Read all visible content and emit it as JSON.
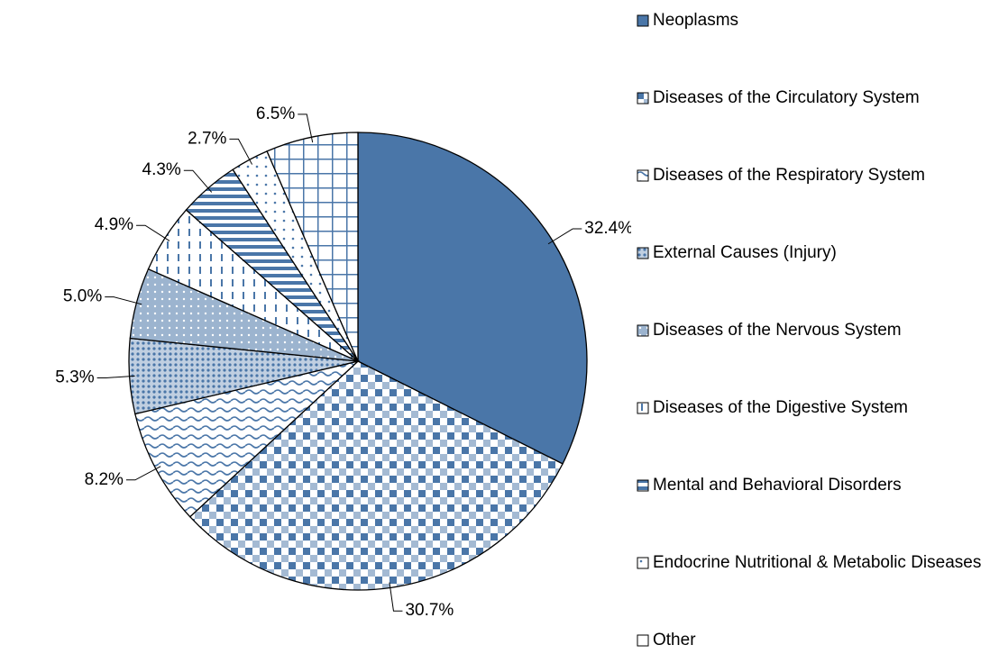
{
  "chart_data": {
    "type": "pie",
    "categories": [
      "Neoplasms",
      "Diseases of the Circulatory System",
      "Diseases of the Respiratory System",
      "External Causes (Injury)",
      "Diseases of the Nervous System",
      "Diseases of the Digestive System",
      "Mental and Behavioral Disorders",
      "Endocrine Nutritional & Metabolic Diseases",
      "Other"
    ],
    "values": [
      32.4,
      30.7,
      8.2,
      5.3,
      5.0,
      4.9,
      4.3,
      2.7,
      6.5
    ],
    "value_labels": [
      "32.4%",
      "30.7%",
      "8.2%",
      "5.3%",
      "5.0%",
      "4.9%",
      "4.3%",
      "2.7%",
      "6.5%"
    ],
    "color": "#4a76a8",
    "legend": "right"
  }
}
